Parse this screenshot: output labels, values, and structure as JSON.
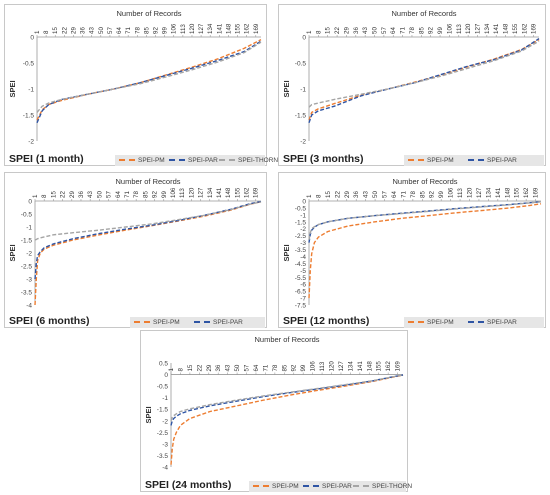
{
  "colors": {
    "pm": "#ed7d31",
    "par": "#2f55a4",
    "thorn": "#a5a5a5"
  },
  "chart_data": [
    {
      "type": "line",
      "panel_label": "SPEI (1 month)",
      "xlabel": "Number of Records",
      "ylabel": "SPEI",
      "x_ticks": [
        "1",
        "8",
        "15",
        "22",
        "29",
        "36",
        "43",
        "50",
        "57",
        "64",
        "71",
        "78",
        "85",
        "92",
        "99",
        "106",
        "113",
        "120",
        "127",
        "134",
        "141",
        "148",
        "155",
        "162",
        "169"
      ],
      "xlim": [
        1,
        173
      ],
      "ylim": [
        -2,
        0
      ],
      "y_ticks": [
        0,
        -0.5,
        -1,
        -1.5,
        -2
      ],
      "y_tick_labels": [
        "0",
        "-0.5",
        "-1",
        "-1.5",
        "-2"
      ],
      "legend": [
        "SPEI-PM",
        "SPEI-PAR",
        "SPEI-THORN"
      ],
      "series": [
        {
          "name": "SPEI-PM",
          "color": "#ed7d31",
          "x": [
            1,
            5,
            10,
            20,
            40,
            60,
            80,
            100,
            120,
            140,
            160,
            173
          ],
          "y": [
            -1.6,
            -1.4,
            -1.3,
            -1.22,
            -1.1,
            -1.0,
            -0.88,
            -0.73,
            -0.58,
            -0.42,
            -0.22,
            -0.05
          ]
        },
        {
          "name": "SPEI-PAR",
          "color": "#2f55a4",
          "x": [
            1,
            5,
            10,
            20,
            40,
            60,
            80,
            100,
            120,
            140,
            160,
            173
          ],
          "y": [
            -1.65,
            -1.42,
            -1.3,
            -1.2,
            -1.1,
            -1.0,
            -0.88,
            -0.74,
            -0.6,
            -0.45,
            -0.28,
            -0.08
          ]
        },
        {
          "name": "SPEI-THORN",
          "color": "#a5a5a5",
          "x": [
            1,
            5,
            10,
            20,
            40,
            60,
            80,
            100,
            120,
            140,
            160,
            173
          ],
          "y": [
            -1.45,
            -1.33,
            -1.27,
            -1.2,
            -1.1,
            -1.0,
            -0.9,
            -0.77,
            -0.63,
            -0.48,
            -0.3,
            -0.1
          ]
        }
      ]
    },
    {
      "type": "line",
      "panel_label": "SPEI (3 months)",
      "xlabel": "Number of Records",
      "ylabel": "SPEI",
      "x_ticks": [
        "1",
        "8",
        "15",
        "22",
        "29",
        "36",
        "43",
        "50",
        "57",
        "64",
        "71",
        "78",
        "85",
        "92",
        "99",
        "106",
        "113",
        "120",
        "127",
        "134",
        "141",
        "148",
        "155",
        "162",
        "169"
      ],
      "xlim": [
        1,
        173
      ],
      "ylim": [
        -2,
        0
      ],
      "y_ticks": [
        0,
        -0.5,
        -1,
        -1.5,
        -2
      ],
      "y_tick_labels": [
        "0",
        "-0.5",
        "-1",
        "-1.5",
        "-2"
      ],
      "legend": [
        "SPEI-PM",
        "SPEI-PAR"
      ],
      "series": [
        {
          "name": "SPEI-PM",
          "color": "#ed7d31",
          "x": [
            1,
            3,
            8,
            20,
            40,
            60,
            80,
            100,
            120,
            140,
            160,
            173
          ],
          "y": [
            -1.6,
            -1.45,
            -1.38,
            -1.28,
            -1.12,
            -1.0,
            -0.87,
            -0.73,
            -0.57,
            -0.42,
            -0.24,
            -0.05
          ]
        },
        {
          "name": "SPEI-PAR",
          "color": "#2f55a4",
          "x": [
            1,
            3,
            8,
            20,
            40,
            60,
            80,
            100,
            120,
            140,
            160,
            173
          ],
          "y": [
            -1.65,
            -1.5,
            -1.42,
            -1.33,
            -1.13,
            -1.0,
            -0.88,
            -0.72,
            -0.56,
            -0.43,
            -0.25,
            -0.03
          ]
        },
        {
          "name": "SPEI-THORN",
          "color": "#a5a5a5",
          "x": [
            1,
            3,
            8,
            20,
            40,
            60,
            80,
            100,
            120,
            140,
            160,
            173
          ],
          "y": [
            -1.35,
            -1.3,
            -1.27,
            -1.2,
            -1.1,
            -1.0,
            -0.88,
            -0.75,
            -0.6,
            -0.45,
            -0.27,
            -0.08
          ]
        }
      ]
    },
    {
      "type": "line",
      "panel_label": "SPEI (6 months)",
      "xlabel": "Number of Records",
      "ylabel": "SPEI",
      "x_ticks": [
        "1",
        "8",
        "15",
        "22",
        "29",
        "36",
        "43",
        "50",
        "57",
        "64",
        "71",
        "78",
        "85",
        "92",
        "99",
        "106",
        "113",
        "120",
        "127",
        "134",
        "141",
        "148",
        "155",
        "162",
        "169"
      ],
      "xlim": [
        1,
        173
      ],
      "ylim": [
        -4,
        0
      ],
      "y_ticks": [
        0,
        -0.5,
        -1,
        -1.5,
        -2,
        -2.5,
        -3,
        -3.5,
        -4
      ],
      "y_tick_labels": [
        "0",
        "-0.5",
        "-1",
        "-1.5",
        "-2",
        "-2.5",
        "-3",
        "-3.5",
        "-4"
      ],
      "legend": [
        "SPEI-PM",
        "SPEI-PAR"
      ],
      "series": [
        {
          "name": "SPEI-PM",
          "color": "#ed7d31",
          "x": [
            1,
            2,
            3,
            5,
            8,
            15,
            30,
            50,
            70,
            90,
            110,
            130,
            150,
            165,
            173
          ],
          "y": [
            -4.0,
            -3.0,
            -2.3,
            -2.0,
            -1.85,
            -1.7,
            -1.5,
            -1.3,
            -1.12,
            -0.95,
            -0.77,
            -0.58,
            -0.35,
            -0.12,
            -0.03
          ]
        },
        {
          "name": "SPEI-PAR",
          "color": "#2f55a4",
          "x": [
            1,
            2,
            3,
            5,
            8,
            15,
            30,
            50,
            70,
            90,
            110,
            130,
            150,
            165,
            173
          ],
          "y": [
            -3.0,
            -2.4,
            -2.1,
            -1.95,
            -1.8,
            -1.65,
            -1.45,
            -1.25,
            -1.08,
            -0.93,
            -0.75,
            -0.55,
            -0.32,
            -0.1,
            -0.02
          ]
        },
        {
          "name": "SPEI-THORN",
          "color": "#a5a5a5",
          "x": [
            1,
            2,
            3,
            5,
            8,
            15,
            30,
            50,
            70,
            90,
            110,
            130,
            150,
            165,
            173
          ],
          "y": [
            -1.5,
            -1.48,
            -1.45,
            -1.42,
            -1.38,
            -1.3,
            -1.22,
            -1.12,
            -1.0,
            -0.88,
            -0.72,
            -0.55,
            -0.33,
            -0.12,
            -0.04
          ]
        }
      ]
    },
    {
      "type": "line",
      "panel_label": "SPEI (12 months)",
      "xlabel": "Number of Records",
      "ylabel": "SPEI",
      "x_ticks": [
        "1",
        "8",
        "15",
        "22",
        "29",
        "36",
        "43",
        "50",
        "57",
        "64",
        "71",
        "78",
        "85",
        "92",
        "99",
        "106",
        "113",
        "120",
        "127",
        "134",
        "141",
        "148",
        "155",
        "162",
        "169"
      ],
      "xlim": [
        1,
        173
      ],
      "ylim": [
        -7.5,
        0
      ],
      "y_ticks": [
        0,
        -0.5,
        -1,
        -1.5,
        -2,
        -2.5,
        -3,
        -3.5,
        -4,
        -4.5,
        -5,
        -5.5,
        -6,
        -6.5,
        -7,
        -7.5
      ],
      "y_tick_labels": [
        "0",
        "-0.5",
        "-1",
        "-1.5",
        "-2",
        "-2.5",
        "-3",
        "-3.5",
        "-4",
        "-4.5",
        "-5",
        "-5.5",
        "-6",
        "-6.5",
        "-7",
        "-7.5"
      ],
      "legend": [
        "SPEI-PM",
        "SPEI-PAR"
      ],
      "series": [
        {
          "name": "SPEI-PM",
          "color": "#ed7d31",
          "x": [
            1,
            2,
            3,
            5,
            8,
            15,
            30,
            50,
            70,
            90,
            110,
            130,
            150,
            165,
            173
          ],
          "y": [
            -7.0,
            -5.0,
            -3.8,
            -3.0,
            -2.6,
            -2.2,
            -1.8,
            -1.5,
            -1.25,
            -1.05,
            -0.85,
            -0.68,
            -0.5,
            -0.32,
            -0.2
          ]
        },
        {
          "name": "SPEI-PAR",
          "color": "#2f55a4",
          "x": [
            1,
            2,
            3,
            5,
            8,
            15,
            30,
            50,
            70,
            90,
            110,
            130,
            150,
            165,
            173
          ],
          "y": [
            -3.0,
            -2.4,
            -2.1,
            -1.9,
            -1.7,
            -1.5,
            -1.25,
            -1.05,
            -0.88,
            -0.72,
            -0.55,
            -0.4,
            -0.25,
            -0.12,
            -0.05
          ]
        },
        {
          "name": "SPEI-THORN",
          "color": "#a5a5a5",
          "x": [
            1,
            2,
            3,
            5,
            8,
            15,
            30,
            50,
            70,
            90,
            110,
            130,
            150,
            165,
            173
          ],
          "y": [
            -2.8,
            -2.3,
            -2.0,
            -1.85,
            -1.7,
            -1.5,
            -1.25,
            -1.05,
            -0.9,
            -0.74,
            -0.57,
            -0.42,
            -0.27,
            -0.14,
            -0.06
          ]
        }
      ]
    },
    {
      "type": "line",
      "panel_label": "SPEI (24 months)",
      "xlabel": "Number of Records",
      "ylabel": "SPEI",
      "x_ticks": [
        "1",
        "8",
        "15",
        "22",
        "29",
        "36",
        "43",
        "50",
        "57",
        "64",
        "71",
        "78",
        "85",
        "92",
        "99",
        "106",
        "113",
        "120",
        "127",
        "134",
        "141",
        "148",
        "155",
        "162",
        "169"
      ],
      "xlim": [
        1,
        173
      ],
      "ylim": [
        -4,
        0
      ],
      "y_ticks": [
        0.5,
        0,
        -0.5,
        -1,
        -1.5,
        -2,
        -2.5,
        -3,
        -3.5,
        -4
      ],
      "y_tick_labels": [
        "0.5",
        "0",
        "-0.5",
        "-1",
        "-1.5",
        "-2",
        "-2.5",
        "-3",
        "-3.5",
        "-4"
      ],
      "legend": [
        "SPEI-PM",
        "SPEI-PAR",
        "SPEI-THORN"
      ],
      "series": [
        {
          "name": "SPEI-PM",
          "color": "#ed7d31",
          "x": [
            1,
            2,
            3,
            5,
            8,
            15,
            30,
            50,
            70,
            90,
            110,
            130,
            150,
            165,
            173
          ],
          "y": [
            -3.9,
            -3.2,
            -2.8,
            -2.5,
            -2.2,
            -1.9,
            -1.6,
            -1.35,
            -1.1,
            -0.88,
            -0.68,
            -0.5,
            -0.3,
            -0.12,
            -0.03
          ]
        },
        {
          "name": "SPEI-PAR",
          "color": "#2f55a4",
          "x": [
            1,
            2,
            3,
            5,
            8,
            15,
            30,
            50,
            70,
            90,
            110,
            130,
            150,
            165,
            173
          ],
          "y": [
            -2.2,
            -2.0,
            -1.9,
            -1.8,
            -1.7,
            -1.55,
            -1.35,
            -1.15,
            -0.95,
            -0.78,
            -0.62,
            -0.46,
            -0.28,
            -0.1,
            -0.02
          ]
        },
        {
          "name": "SPEI-THORN",
          "color": "#a5a5a5",
          "x": [
            1,
            2,
            3,
            5,
            8,
            15,
            30,
            50,
            70,
            90,
            110,
            130,
            150,
            165,
            173
          ],
          "y": [
            -2.0,
            -1.85,
            -1.78,
            -1.7,
            -1.6,
            -1.48,
            -1.3,
            -1.1,
            -0.92,
            -0.76,
            -0.6,
            -0.44,
            -0.27,
            -0.1,
            -0.02
          ]
        }
      ]
    }
  ]
}
